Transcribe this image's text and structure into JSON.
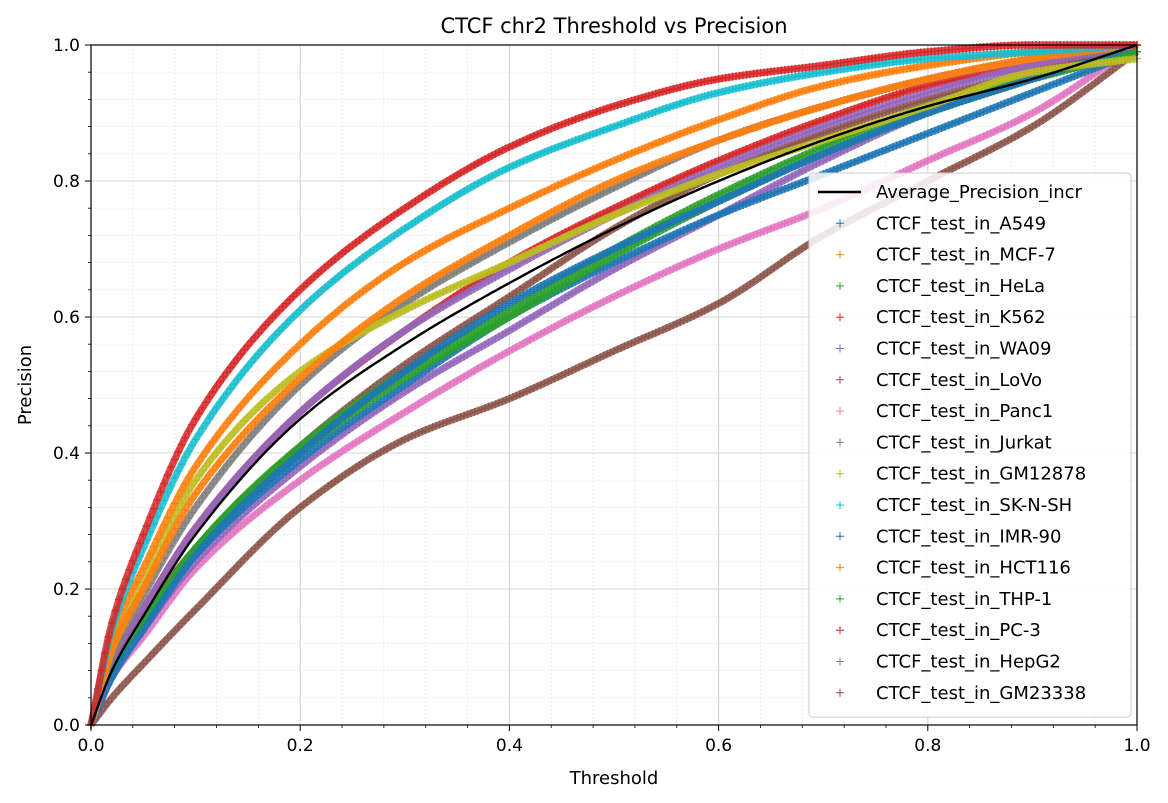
{
  "chart_data": {
    "type": "scatter",
    "title": "CTCF chr2 Threshold vs Precision",
    "xlabel": "Threshold",
    "ylabel": "Precision",
    "xlim": [
      0,
      1
    ],
    "ylim": [
      0,
      1
    ],
    "xticks": [
      "0.0",
      "0.2",
      "0.4",
      "0.6",
      "0.8",
      "1.0"
    ],
    "yticks": [
      "0.0",
      "0.2",
      "0.4",
      "0.6",
      "0.8",
      "1.0"
    ],
    "grid": true,
    "minor_grid": true,
    "legend_position": "center-right",
    "average": {
      "name": "Average_Precision_incr",
      "color": "#000000",
      "x": [
        0,
        0.02,
        0.05,
        0.1,
        0.2,
        0.3,
        0.4,
        0.5,
        0.6,
        0.7,
        0.8,
        0.9,
        1.0
      ],
      "y": [
        0,
        0.08,
        0.16,
        0.28,
        0.45,
        0.56,
        0.65,
        0.73,
        0.8,
        0.86,
        0.91,
        0.95,
        1.0
      ]
    },
    "series": [
      {
        "name": "CTCF_test_in_A549",
        "color": "#1f77b4",
        "x": [
          0,
          0.02,
          0.05,
          0.1,
          0.2,
          0.3,
          0.4,
          0.5,
          0.6,
          0.7,
          0.8,
          0.9,
          1.0
        ],
        "y": [
          0,
          0.07,
          0.14,
          0.25,
          0.4,
          0.52,
          0.62,
          0.7,
          0.77,
          0.84,
          0.9,
          0.95,
          1.0
        ]
      },
      {
        "name": "CTCF_test_in_MCF-7",
        "color": "#ff7f0e",
        "x": [
          0,
          0.02,
          0.05,
          0.1,
          0.2,
          0.3,
          0.4,
          0.5,
          0.6,
          0.7,
          0.8,
          0.9,
          1.0
        ],
        "y": [
          0,
          0.13,
          0.23,
          0.38,
          0.56,
          0.68,
          0.76,
          0.83,
          0.89,
          0.94,
          0.97,
          0.99,
          1.0
        ]
      },
      {
        "name": "CTCF_test_in_HeLa",
        "color": "#2ca02c",
        "x": [
          0,
          0.02,
          0.05,
          0.1,
          0.2,
          0.3,
          0.4,
          0.5,
          0.6,
          0.7,
          0.8,
          0.9,
          1.0
        ],
        "y": [
          0,
          0.08,
          0.15,
          0.26,
          0.41,
          0.52,
          0.61,
          0.7,
          0.78,
          0.85,
          0.91,
          0.95,
          0.99
        ]
      },
      {
        "name": "CTCF_test_in_K562",
        "color": "#d62728",
        "x": [
          0,
          0.02,
          0.05,
          0.1,
          0.2,
          0.3,
          0.4,
          0.5,
          0.6,
          0.7,
          0.8,
          0.9,
          1.0
        ],
        "y": [
          0,
          0.15,
          0.28,
          0.45,
          0.64,
          0.76,
          0.85,
          0.91,
          0.95,
          0.97,
          0.99,
          1.0,
          1.0
        ]
      },
      {
        "name": "CTCF_test_in_WA09",
        "color": "#9467bd",
        "x": [
          0,
          0.02,
          0.05,
          0.1,
          0.2,
          0.3,
          0.4,
          0.5,
          0.6,
          0.7,
          0.8,
          0.9,
          1.0
        ],
        "y": [
          0,
          0.09,
          0.17,
          0.29,
          0.46,
          0.58,
          0.67,
          0.75,
          0.82,
          0.88,
          0.93,
          0.97,
          1.0
        ]
      },
      {
        "name": "CTCF_test_in_LoVo",
        "color": "#8c564b",
        "x": [
          0,
          0.02,
          0.05,
          0.1,
          0.2,
          0.3,
          0.4,
          0.5,
          0.6,
          0.7,
          0.8,
          0.9,
          1.0
        ],
        "y": [
          0,
          0.08,
          0.16,
          0.26,
          0.41,
          0.53,
          0.63,
          0.73,
          0.81,
          0.87,
          0.92,
          0.96,
          1.0
        ]
      },
      {
        "name": "CTCF_test_in_Panc1",
        "color": "#e377c2",
        "x": [
          0,
          0.02,
          0.05,
          0.1,
          0.2,
          0.3,
          0.4,
          0.5,
          0.6,
          0.7,
          0.8,
          0.9,
          1.0
        ],
        "y": [
          0,
          0.07,
          0.13,
          0.23,
          0.36,
          0.46,
          0.55,
          0.63,
          0.7,
          0.76,
          0.83,
          0.9,
          1.0
        ]
      },
      {
        "name": "CTCF_test_in_Jurkat",
        "color": "#7f7f7f",
        "x": [
          0,
          0.02,
          0.05,
          0.1,
          0.2,
          0.3,
          0.4,
          0.5,
          0.6,
          0.7,
          0.8,
          0.9,
          1.0
        ],
        "y": [
          0,
          0.1,
          0.19,
          0.32,
          0.5,
          0.62,
          0.71,
          0.79,
          0.86,
          0.91,
          0.95,
          0.98,
          1.0
        ]
      },
      {
        "name": "CTCF_test_in_GM12878",
        "color": "#bcbd22",
        "x": [
          0,
          0.02,
          0.05,
          0.1,
          0.2,
          0.3,
          0.4,
          0.5,
          0.6,
          0.7,
          0.8,
          0.9,
          1.0
        ],
        "y": [
          0,
          0.11,
          0.21,
          0.36,
          0.52,
          0.61,
          0.68,
          0.75,
          0.81,
          0.86,
          0.91,
          0.96,
          0.98
        ]
      },
      {
        "name": "CTCF_test_in_SK-N-SH",
        "color": "#17becf",
        "x": [
          0,
          0.02,
          0.05,
          0.1,
          0.2,
          0.3,
          0.4,
          0.5,
          0.6,
          0.7,
          0.8,
          0.9,
          1.0
        ],
        "y": [
          0,
          0.14,
          0.26,
          0.42,
          0.61,
          0.73,
          0.82,
          0.88,
          0.93,
          0.96,
          0.98,
          0.99,
          1.0
        ]
      },
      {
        "name": "CTCF_test_in_IMR-90",
        "color": "#1f77b4",
        "x": [
          0,
          0.02,
          0.05,
          0.1,
          0.2,
          0.3,
          0.4,
          0.5,
          0.6,
          0.7,
          0.8,
          0.9,
          1.0
        ],
        "y": [
          0,
          0.08,
          0.15,
          0.25,
          0.39,
          0.5,
          0.6,
          0.68,
          0.75,
          0.81,
          0.87,
          0.93,
          0.99
        ]
      },
      {
        "name": "CTCF_test_in_HCT116",
        "color": "#ff7f0e",
        "x": [
          0,
          0.02,
          0.05,
          0.1,
          0.2,
          0.3,
          0.4,
          0.5,
          0.6,
          0.7,
          0.8,
          0.9,
          1.0
        ],
        "y": [
          0,
          0.11,
          0.2,
          0.34,
          0.51,
          0.63,
          0.72,
          0.8,
          0.86,
          0.91,
          0.95,
          0.98,
          1.0
        ]
      },
      {
        "name": "CTCF_test_in_THP-1",
        "color": "#2ca02c",
        "x": [
          0,
          0.02,
          0.05,
          0.1,
          0.2,
          0.3,
          0.4,
          0.5,
          0.6,
          0.7,
          0.8,
          0.9,
          1.0
        ],
        "y": [
          0,
          0.08,
          0.15,
          0.26,
          0.4,
          0.51,
          0.6,
          0.69,
          0.77,
          0.84,
          0.9,
          0.95,
          0.99
        ]
      },
      {
        "name": "CTCF_test_in_PC-3",
        "color": "#d62728",
        "x": [
          0,
          0.02,
          0.05,
          0.1,
          0.2,
          0.3,
          0.4,
          0.5,
          0.6,
          0.7,
          0.8,
          0.9,
          1.0
        ],
        "y": [
          0,
          0.09,
          0.17,
          0.29,
          0.46,
          0.58,
          0.68,
          0.76,
          0.83,
          0.89,
          0.94,
          0.97,
          1.0
        ]
      },
      {
        "name": "CTCF_test_in_HepG2",
        "color": "#9467bd",
        "x": [
          0,
          0.02,
          0.05,
          0.1,
          0.2,
          0.3,
          0.4,
          0.5,
          0.6,
          0.7,
          0.8,
          0.9,
          1.0
        ],
        "y": [
          0,
          0.07,
          0.14,
          0.24,
          0.38,
          0.49,
          0.58,
          0.67,
          0.75,
          0.83,
          0.9,
          0.95,
          1.0
        ]
      },
      {
        "name": "CTCF_test_in_GM23338",
        "color": "#8c564b",
        "x": [
          0,
          0.02,
          0.05,
          0.1,
          0.2,
          0.3,
          0.4,
          0.5,
          0.6,
          0.7,
          0.8,
          0.9,
          1.0
        ],
        "y": [
          0,
          0.04,
          0.09,
          0.17,
          0.32,
          0.42,
          0.48,
          0.55,
          0.62,
          0.72,
          0.8,
          0.88,
          0.99
        ]
      }
    ]
  }
}
